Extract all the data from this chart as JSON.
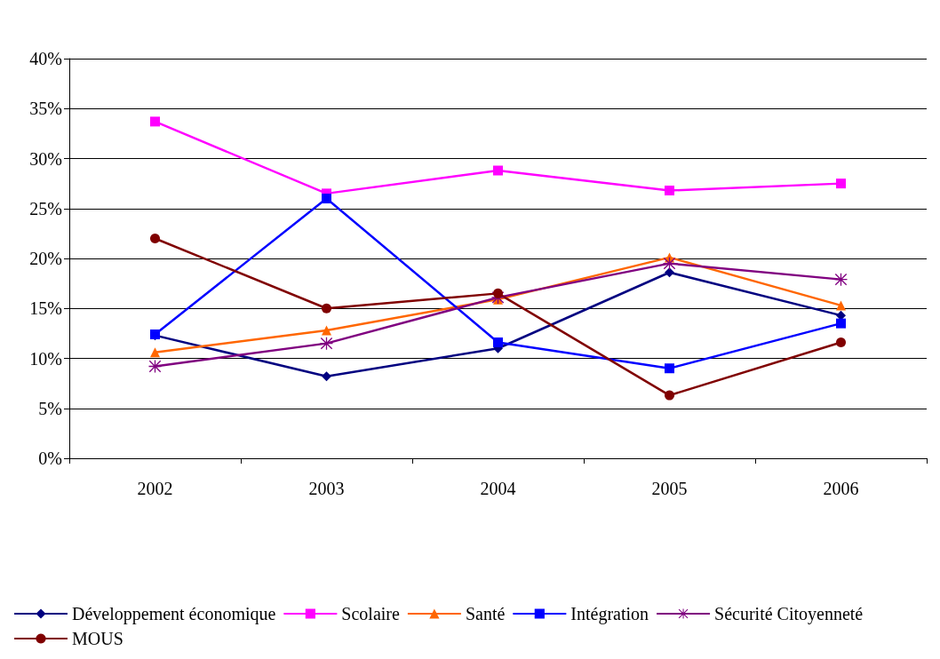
{
  "chart_data": {
    "type": "line",
    "categories": [
      "2002",
      "2003",
      "2004",
      "2005",
      "2006"
    ],
    "series": [
      {
        "name": "Développement économique",
        "color": "#000080",
        "marker": "diamond",
        "values": [
          12.3,
          8.2,
          11.0,
          18.6,
          14.3
        ]
      },
      {
        "name": "Scolaire",
        "color": "#ff00ff",
        "marker": "square",
        "values": [
          33.7,
          26.5,
          28.8,
          26.8,
          27.5
        ]
      },
      {
        "name": "Santé",
        "color": "#ff6600",
        "marker": "triangle",
        "values": [
          10.6,
          12.8,
          15.9,
          20.1,
          15.3
        ]
      },
      {
        "name": "Intégration",
        "color": "#0000ff",
        "marker": "square",
        "values": [
          12.4,
          26.0,
          11.6,
          9.0,
          13.5
        ]
      },
      {
        "name": "Sécurité Citoyenneté",
        "color": "#800080",
        "marker": "star",
        "values": [
          9.2,
          11.5,
          16.1,
          19.5,
          17.9
        ]
      },
      {
        "name": "MOUS",
        "color": "#800000",
        "marker": "circle",
        "values": [
          22.0,
          15.0,
          16.5,
          6.3,
          11.6
        ]
      }
    ],
    "ylim": [
      0,
      40
    ],
    "yticks": [
      {
        "value": 0,
        "label": "0%"
      },
      {
        "value": 5,
        "label": "5%"
      },
      {
        "value": 10,
        "label": "10%"
      },
      {
        "value": 15,
        "label": "15%"
      },
      {
        "value": 20,
        "label": "20%"
      },
      {
        "value": 25,
        "label": "25%"
      },
      {
        "value": 30,
        "label": "30%"
      },
      {
        "value": 35,
        "label": "35%"
      },
      {
        "value": 40,
        "label": "40%"
      }
    ],
    "grid": "y",
    "legend": "bottom"
  }
}
